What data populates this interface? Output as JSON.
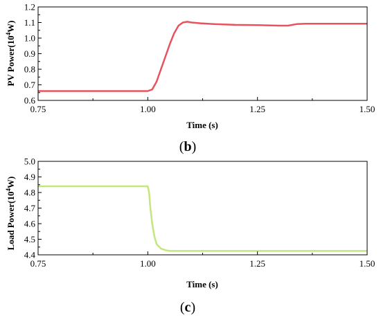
{
  "chart_data": [
    {
      "type": "line",
      "panel_label": "b",
      "xlabel": "Time (s)",
      "ylabel_main": "PV Power(10",
      "ylabel_sup": "4",
      "ylabel_tail": "W)",
      "xlim": [
        0.75,
        1.5
      ],
      "ylim": [
        0.6,
        1.2
      ],
      "x_ticks": [
        "0.75",
        "1.00",
        "1.25",
        "1.50"
      ],
      "x_tick_values": [
        0.75,
        1.0,
        1.25,
        1.5
      ],
      "y_ticks": [
        "0.6",
        "0.7",
        "0.8",
        "0.9",
        "1.0",
        "1.1",
        "1.2"
      ],
      "y_tick_values": [
        0.6,
        0.7,
        0.8,
        0.9,
        1.0,
        1.1,
        1.2
      ],
      "series": [
        {
          "color": "#e8525c",
          "x": [
            0.75,
            0.85,
            0.95,
            1.0,
            1.01,
            1.02,
            1.03,
            1.04,
            1.05,
            1.06,
            1.07,
            1.08,
            1.09,
            1.1,
            1.12,
            1.15,
            1.2,
            1.25,
            1.3,
            1.32,
            1.34,
            1.36,
            1.4,
            1.45,
            1.5
          ],
          "y": [
            0.66,
            0.66,
            0.66,
            0.66,
            0.67,
            0.72,
            0.8,
            0.88,
            0.96,
            1.03,
            1.08,
            1.1,
            1.105,
            1.1,
            1.095,
            1.09,
            1.085,
            1.083,
            1.08,
            1.08,
            1.09,
            1.092,
            1.092,
            1.092,
            1.092
          ]
        }
      ]
    },
    {
      "type": "line",
      "panel_label": "c",
      "xlabel": "Time (s)",
      "ylabel_main": "Load Power(10",
      "ylabel_sup": "4",
      "ylabel_tail": "W)",
      "xlim": [
        0.75,
        1.5
      ],
      "ylim": [
        4.4,
        5.0
      ],
      "x_ticks": [
        "0.75",
        "1.00",
        "1.25",
        "1.50"
      ],
      "x_tick_values": [
        0.75,
        1.0,
        1.25,
        1.5
      ],
      "y_ticks": [
        "4.4",
        "4.5",
        "4.6",
        "4.7",
        "4.8",
        "4.9",
        "5.0"
      ],
      "y_tick_values": [
        4.4,
        4.5,
        4.6,
        4.7,
        4.8,
        4.9,
        5.0
      ],
      "series": [
        {
          "color": "#c5e67a",
          "x": [
            0.75,
            0.9,
            1.0,
            1.003,
            1.006,
            1.01,
            1.015,
            1.02,
            1.03,
            1.04,
            1.05,
            1.08,
            1.2,
            1.35,
            1.5
          ],
          "y": [
            4.84,
            4.84,
            4.84,
            4.8,
            4.7,
            4.6,
            4.52,
            4.47,
            4.44,
            4.43,
            4.425,
            4.425,
            4.425,
            4.425,
            4.425
          ]
        }
      ]
    }
  ]
}
